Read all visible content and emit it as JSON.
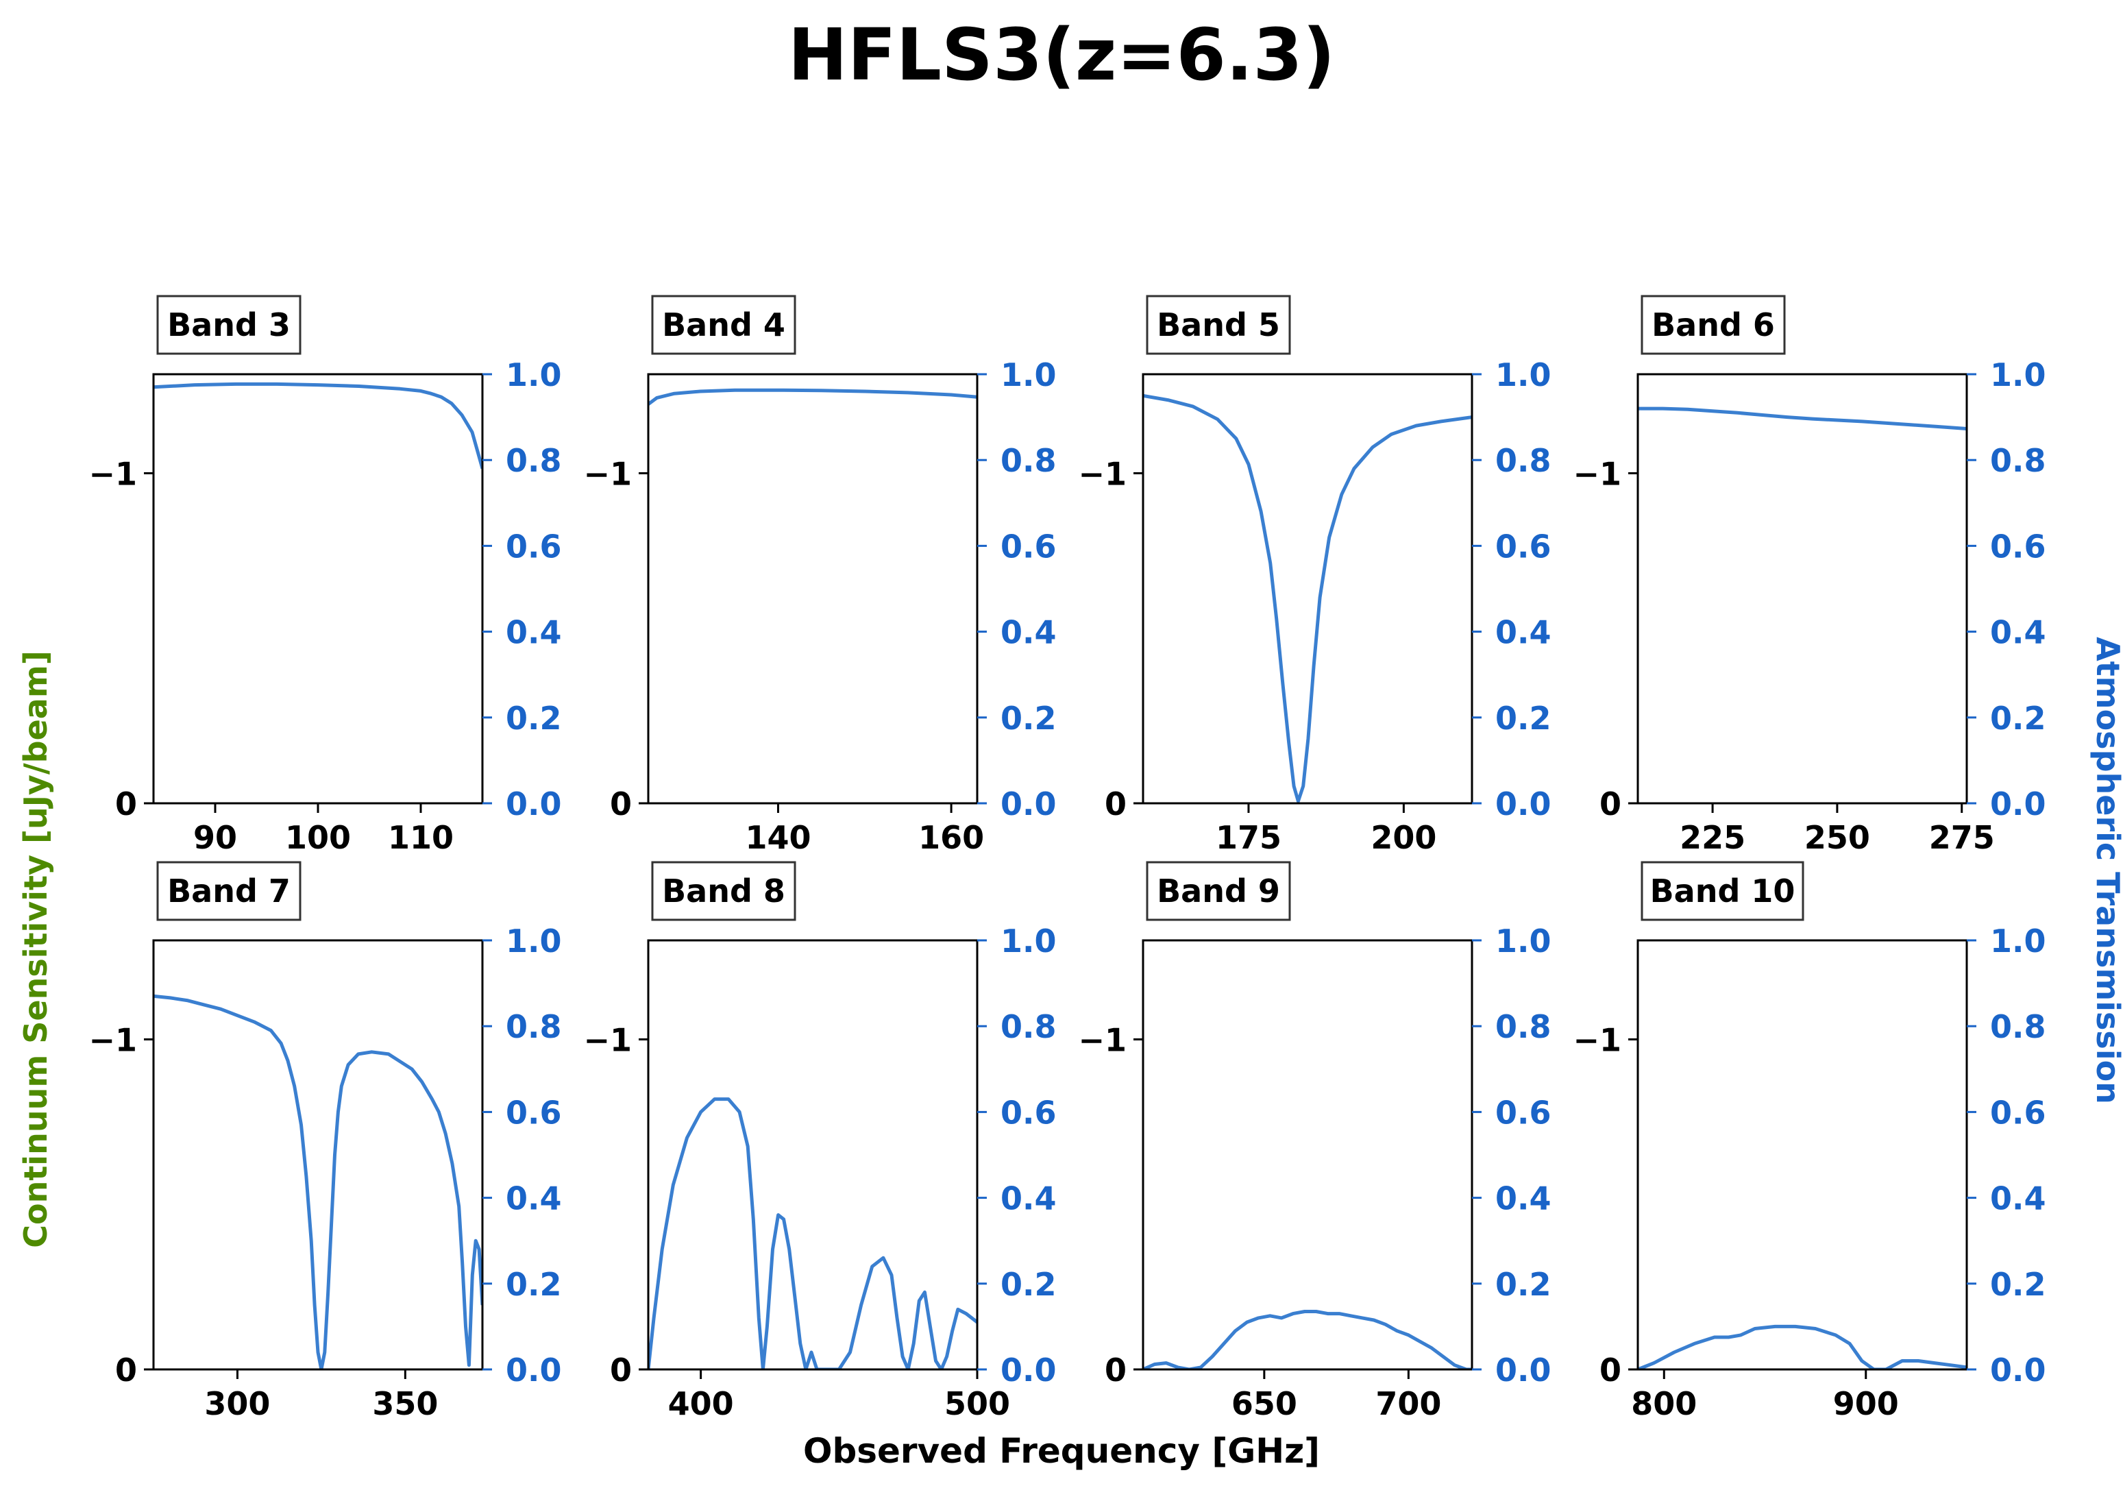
{
  "figure": {
    "title": "HFLS3(z=6.3)",
    "left_ylabel": "Continuum Sensitivity [uJy/beam]",
    "right_ylabel": "Atmospheric Transmission",
    "xlabel": "Observed Frequency [GHz]",
    "colors": {
      "transmission": "#3a7fd0",
      "left_axis_label": "#4e8a00",
      "right_axis": "#1a64c8",
      "axes": "#000000"
    }
  },
  "chart_data": [
    {
      "type": "line",
      "band_label": "Band 3",
      "xlim": [
        84,
        116
      ],
      "xticks": [
        90,
        100,
        110
      ],
      "left_ylim": [
        0,
        -1.3
      ],
      "left_yticks": [
        -1,
        0
      ],
      "left_ytick_labels": [
        "−1",
        "0"
      ],
      "right_ylim": [
        0,
        1
      ],
      "right_yticks": [
        0.0,
        0.2,
        0.4,
        0.6,
        0.8,
        1.0
      ],
      "right_ytick_labels": [
        "0.0",
        "0.2",
        "0.4",
        "0.6",
        "0.8",
        "1.0"
      ],
      "series": [
        {
          "x": [
            84,
            88,
            92,
            96,
            100,
            104,
            108,
            110,
            111,
            112,
            113,
            114,
            115,
            116
          ],
          "y": [
            0.97,
            0.975,
            0.977,
            0.977,
            0.975,
            0.972,
            0.966,
            0.961,
            0.955,
            0.947,
            0.932,
            0.905,
            0.865,
            0.78
          ]
        }
      ]
    },
    {
      "type": "line",
      "band_label": "Band 4",
      "xlim": [
        125,
        163
      ],
      "xticks": [
        140,
        160
      ],
      "left_ylim": [
        0,
        -1.3
      ],
      "left_yticks": [
        -1,
        0
      ],
      "left_ytick_labels": [
        "−1",
        "0"
      ],
      "right_ylim": [
        0,
        1
      ],
      "right_yticks": [
        0.0,
        0.2,
        0.4,
        0.6,
        0.8,
        1.0
      ],
      "right_ytick_labels": [
        "0.0",
        "0.2",
        "0.4",
        "0.6",
        "0.8",
        "1.0"
      ],
      "series": [
        {
          "x": [
            125,
            126,
            128,
            131,
            135,
            140,
            145,
            150,
            155,
            160,
            163
          ],
          "y": [
            0.93,
            0.945,
            0.955,
            0.96,
            0.963,
            0.963,
            0.962,
            0.96,
            0.957,
            0.952,
            0.947
          ]
        }
      ]
    },
    {
      "type": "line",
      "band_label": "Band 5",
      "xlim": [
        158,
        211
      ],
      "xticks": [
        175,
        200
      ],
      "left_ylim": [
        0,
        -1.3
      ],
      "left_yticks": [
        -1,
        0
      ],
      "left_ytick_labels": [
        "−1",
        "0"
      ],
      "right_ylim": [
        0,
        1
      ],
      "right_yticks": [
        0.0,
        0.2,
        0.4,
        0.6,
        0.8,
        1.0
      ],
      "right_ytick_labels": [
        "0.0",
        "0.2",
        "0.4",
        "0.6",
        "0.8",
        "1.0"
      ],
      "series": [
        {
          "x": [
            158,
            162,
            166,
            170,
            173,
            175,
            177,
            178.5,
            179.5,
            180.5,
            181.5,
            182.3,
            183,
            183.8,
            184.6,
            185.5,
            186.5,
            188,
            190,
            192,
            195,
            198,
            202,
            206,
            211
          ],
          "y": [
            0.95,
            0.94,
            0.925,
            0.895,
            0.85,
            0.79,
            0.68,
            0.56,
            0.43,
            0.28,
            0.14,
            0.04,
            0.005,
            0.04,
            0.15,
            0.32,
            0.48,
            0.62,
            0.72,
            0.78,
            0.83,
            0.86,
            0.88,
            0.89,
            0.9
          ]
        }
      ]
    },
    {
      "type": "line",
      "band_label": "Band 6",
      "xlim": [
        210,
        276
      ],
      "xticks": [
        225,
        250,
        275
      ],
      "left_ylim": [
        0,
        -1.3
      ],
      "left_yticks": [
        -1,
        0
      ],
      "left_ytick_labels": [
        "−1",
        "0"
      ],
      "right_ylim": [
        0,
        1
      ],
      "right_yticks": [
        0.0,
        0.2,
        0.4,
        0.6,
        0.8,
        1.0
      ],
      "right_ytick_labels": [
        "0.0",
        "0.2",
        "0.4",
        "0.6",
        "0.8",
        "1.0"
      ],
      "series": [
        {
          "x": [
            210,
            215,
            220,
            225,
            230,
            235,
            240,
            245,
            250,
            255,
            260,
            265,
            270,
            276
          ],
          "y": [
            0.92,
            0.92,
            0.918,
            0.914,
            0.91,
            0.905,
            0.9,
            0.896,
            0.893,
            0.89,
            0.886,
            0.882,
            0.878,
            0.873
          ]
        }
      ]
    },
    {
      "type": "line",
      "band_label": "Band 7",
      "xlim": [
        275,
        373
      ],
      "xticks": [
        300,
        350
      ],
      "left_ylim": [
        0,
        -1.3
      ],
      "left_yticks": [
        -1,
        0
      ],
      "left_ytick_labels": [
        "−1",
        "0"
      ],
      "right_ylim": [
        0,
        1
      ],
      "right_yticks": [
        0.0,
        0.2,
        0.4,
        0.6,
        0.8,
        1.0
      ],
      "right_ytick_labels": [
        "0.0",
        "0.2",
        "0.4",
        "0.6",
        "0.8",
        "1.0"
      ],
      "series": [
        {
          "x": [
            275,
            280,
            285,
            290,
            295,
            300,
            305,
            310,
            313,
            315,
            317,
            319,
            320.5,
            322,
            323,
            324,
            325,
            326,
            327,
            328,
            329,
            330,
            331,
            333,
            336,
            340,
            345,
            348,
            352,
            355,
            358,
            360,
            362,
            364,
            366,
            367,
            368,
            369,
            370,
            371,
            372,
            373
          ],
          "y": [
            0.87,
            0.866,
            0.86,
            0.85,
            0.84,
            0.825,
            0.81,
            0.79,
            0.76,
            0.72,
            0.66,
            0.57,
            0.45,
            0.3,
            0.15,
            0.04,
            0.0,
            0.04,
            0.18,
            0.34,
            0.5,
            0.6,
            0.66,
            0.71,
            0.735,
            0.74,
            0.735,
            0.72,
            0.7,
            0.67,
            0.63,
            0.6,
            0.55,
            0.48,
            0.38,
            0.25,
            0.1,
            0.01,
            0.22,
            0.3,
            0.28,
            0.15
          ]
        }
      ]
    },
    {
      "type": "line",
      "band_label": "Band 8",
      "xlim": [
        381,
        500
      ],
      "xticks": [
        400,
        500
      ],
      "left_ylim": [
        0,
        -1.3
      ],
      "left_yticks": [
        -1,
        0
      ],
      "left_ytick_labels": [
        "−1",
        "0"
      ],
      "right_ylim": [
        0,
        1
      ],
      "right_yticks": [
        0.0,
        0.2,
        0.4,
        0.6,
        0.8,
        1.0
      ],
      "right_ytick_labels": [
        "0.0",
        "0.2",
        "0.4",
        "0.6",
        "0.8",
        "1.0"
      ],
      "series": [
        {
          "x": [
            381,
            383,
            386,
            390,
            395,
            400,
            405,
            410,
            414,
            417,
            419,
            421,
            422.5,
            424,
            426,
            428,
            430,
            432,
            434,
            436,
            438,
            440,
            442,
            445,
            450,
            454,
            458,
            462,
            466,
            469,
            471,
            473,
            475,
            477,
            479,
            481,
            483,
            485,
            487,
            489,
            491,
            493,
            496,
            500
          ],
          "y": [
            0.0,
            0.12,
            0.28,
            0.43,
            0.54,
            0.6,
            0.63,
            0.63,
            0.6,
            0.52,
            0.35,
            0.12,
            0.0,
            0.1,
            0.28,
            0.36,
            0.35,
            0.28,
            0.17,
            0.06,
            0.0,
            0.04,
            0.0,
            0.0,
            0.0,
            0.04,
            0.15,
            0.24,
            0.26,
            0.22,
            0.12,
            0.03,
            0.0,
            0.06,
            0.16,
            0.18,
            0.1,
            0.02,
            0.0,
            0.03,
            0.09,
            0.14,
            0.13,
            0.11
          ]
        }
      ]
    },
    {
      "type": "line",
      "band_label": "Band 9",
      "xlim": [
        608,
        722
      ],
      "xticks": [
        650,
        700
      ],
      "left_ylim": [
        0,
        -1.3
      ],
      "left_yticks": [
        -1,
        0
      ],
      "left_ytick_labels": [
        "−1",
        "0"
      ],
      "right_ylim": [
        0,
        1
      ],
      "right_yticks": [
        0.0,
        0.2,
        0.4,
        0.6,
        0.8,
        1.0
      ],
      "right_ytick_labels": [
        "0.0",
        "0.2",
        "0.4",
        "0.6",
        "0.8",
        "1.0"
      ],
      "series": [
        {
          "x": [
            608,
            612,
            616,
            620,
            624,
            628,
            632,
            636,
            640,
            644,
            648,
            652,
            656,
            660,
            664,
            668,
            672,
            676,
            680,
            684,
            688,
            692,
            696,
            700,
            704,
            708,
            712,
            716,
            720,
            722
          ],
          "y": [
            0.0,
            0.012,
            0.015,
            0.005,
            0.0,
            0.005,
            0.03,
            0.06,
            0.09,
            0.11,
            0.12,
            0.125,
            0.12,
            0.13,
            0.135,
            0.135,
            0.13,
            0.13,
            0.125,
            0.12,
            0.115,
            0.105,
            0.09,
            0.08,
            0.065,
            0.05,
            0.03,
            0.01,
            0.0,
            0.0
          ]
        }
      ]
    },
    {
      "type": "line",
      "band_label": "Band 10",
      "xlim": [
        787,
        950
      ],
      "xticks": [
        800,
        900
      ],
      "left_ylim": [
        0,
        -1.3
      ],
      "left_yticks": [
        -1,
        0
      ],
      "left_ytick_labels": [
        "−1",
        "0"
      ],
      "right_ylim": [
        0,
        1
      ],
      "right_yticks": [
        0.0,
        0.2,
        0.4,
        0.6,
        0.8,
        1.0
      ],
      "right_ytick_labels": [
        "0.0",
        "0.2",
        "0.4",
        "0.6",
        "0.8",
        "1.0"
      ],
      "series": [
        {
          "x": [
            787,
            795,
            805,
            815,
            825,
            832,
            838,
            845,
            855,
            865,
            875,
            885,
            892,
            898,
            904,
            910,
            918,
            926,
            934,
            942,
            950
          ],
          "y": [
            0.0,
            0.015,
            0.04,
            0.06,
            0.075,
            0.075,
            0.08,
            0.095,
            0.1,
            0.1,
            0.095,
            0.08,
            0.06,
            0.02,
            0.0,
            0.0,
            0.02,
            0.02,
            0.015,
            0.01,
            0.005
          ]
        }
      ]
    }
  ]
}
